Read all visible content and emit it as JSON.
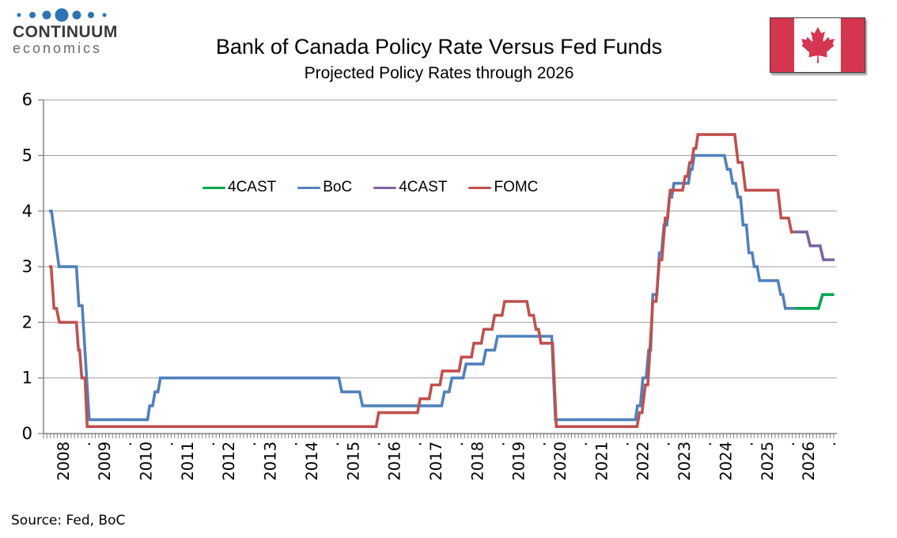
{
  "logo": {
    "brand": "CONTINUUM",
    "sub": "economics",
    "dot_color": "#2d74b4",
    "dot_radii": [
      2.5,
      4,
      5.5,
      8.5,
      5.5,
      4,
      2.5
    ],
    "dot_centers": [
      8,
      25,
      43,
      62,
      81,
      99,
      116
    ]
  },
  "header": {
    "title": "Bank of Canada Policy Rate Versus Fed Funds",
    "subtitle": "Projected Policy Rates through 2026"
  },
  "flag": {
    "name": "canada-flag",
    "red": "#d6354f",
    "white": "#ffffff"
  },
  "source": "Source: Fed, BoC",
  "colors": {
    "grid": "#9e9e9e",
    "axis": "#808080",
    "text": "#000000"
  },
  "chart_data": {
    "type": "line",
    "title": "Bank of Canada Policy Rate Versus Fed Funds",
    "subtitle": "Projected Policy Rates through 2026",
    "xlabel": "",
    "ylabel": "",
    "ylim": [
      0,
      6
    ],
    "yticks": [
      0,
      1,
      2,
      3,
      4,
      5,
      6
    ],
    "xlim": [
      2008,
      2027
    ],
    "xtick_years": [
      2008,
      2009,
      2010,
      2011,
      2012,
      2013,
      2014,
      2015,
      2016,
      2017,
      2018,
      2019,
      2020,
      2021,
      2022,
      2023,
      2024,
      2025,
      2026
    ],
    "xtick_separator": ".",
    "grid": "horizontal",
    "legend_position": "inside-top-left",
    "series": [
      {
        "name": "4CAST",
        "role": "BoC projection",
        "color": "#00a651",
        "points": [
          [
            2026.0,
            2.25
          ],
          [
            2026.58,
            2.25
          ],
          [
            2026.68,
            2.5
          ],
          [
            2026.96,
            2.5
          ]
        ]
      },
      {
        "name": "BoC",
        "role": "Bank of Canada policy rate",
        "color": "#4f81bd",
        "points": [
          [
            2008.0,
            4.0
          ],
          [
            2008.06,
            4.0
          ],
          [
            2008.24,
            3.0
          ],
          [
            2008.66,
            3.0
          ],
          [
            2008.72,
            2.3
          ],
          [
            2008.8,
            2.3
          ],
          [
            2008.97,
            0.25
          ],
          [
            2010.38,
            0.25
          ],
          [
            2010.43,
            0.5
          ],
          [
            2010.5,
            0.5
          ],
          [
            2010.56,
            0.75
          ],
          [
            2010.63,
            0.75
          ],
          [
            2010.69,
            1.0
          ],
          [
            2015.0,
            1.0
          ],
          [
            2015.07,
            0.75
          ],
          [
            2015.5,
            0.75
          ],
          [
            2015.57,
            0.5
          ],
          [
            2017.48,
            0.5
          ],
          [
            2017.55,
            0.75
          ],
          [
            2017.66,
            0.75
          ],
          [
            2017.73,
            1.0
          ],
          [
            2018.0,
            1.0
          ],
          [
            2018.07,
            1.25
          ],
          [
            2018.48,
            1.25
          ],
          [
            2018.55,
            1.5
          ],
          [
            2018.76,
            1.5
          ],
          [
            2018.83,
            1.75
          ],
          [
            2020.14,
            1.75
          ],
          [
            2020.23,
            0.25
          ],
          [
            2022.16,
            0.25
          ],
          [
            2022.21,
            0.5
          ],
          [
            2022.28,
            0.5
          ],
          [
            2022.34,
            1.0
          ],
          [
            2022.42,
            1.0
          ],
          [
            2022.48,
            1.5
          ],
          [
            2022.53,
            1.5
          ],
          [
            2022.58,
            2.5
          ],
          [
            2022.68,
            2.5
          ],
          [
            2022.74,
            3.25
          ],
          [
            2022.79,
            3.25
          ],
          [
            2022.85,
            3.75
          ],
          [
            2022.92,
            3.75
          ],
          [
            2022.98,
            4.25
          ],
          [
            2023.04,
            4.25
          ],
          [
            2023.09,
            4.5
          ],
          [
            2023.44,
            4.5
          ],
          [
            2023.49,
            4.75
          ],
          [
            2023.53,
            4.75
          ],
          [
            2023.58,
            5.0
          ],
          [
            2024.31,
            5.0
          ],
          [
            2024.38,
            4.75
          ],
          [
            2024.45,
            4.75
          ],
          [
            2024.51,
            4.5
          ],
          [
            2024.58,
            4.5
          ],
          [
            2024.64,
            4.25
          ],
          [
            2024.7,
            4.25
          ],
          [
            2024.76,
            3.75
          ],
          [
            2024.84,
            3.75
          ],
          [
            2024.9,
            3.25
          ],
          [
            2024.98,
            3.25
          ],
          [
            2025.03,
            3.0
          ],
          [
            2025.1,
            3.0
          ],
          [
            2025.16,
            2.75
          ],
          [
            2025.6,
            2.75
          ],
          [
            2025.67,
            2.5
          ],
          [
            2025.72,
            2.5
          ],
          [
            2025.78,
            2.25
          ],
          [
            2026.0,
            2.25
          ]
        ]
      },
      {
        "name": "4CAST",
        "role": "Fed projection",
        "color": "#8064a2",
        "points": [
          [
            2026.0,
            3.625
          ],
          [
            2026.3,
            3.625
          ],
          [
            2026.38,
            3.375
          ],
          [
            2026.62,
            3.375
          ],
          [
            2026.7,
            3.125
          ],
          [
            2026.97,
            3.125
          ]
        ]
      },
      {
        "name": "FOMC",
        "role": "Fed funds rate",
        "color": "#c0504d",
        "points": [
          [
            2008.0,
            3.0
          ],
          [
            2008.05,
            3.0
          ],
          [
            2008.12,
            2.25
          ],
          [
            2008.18,
            2.25
          ],
          [
            2008.25,
            2.0
          ],
          [
            2008.66,
            2.0
          ],
          [
            2008.71,
            1.5
          ],
          [
            2008.74,
            1.5
          ],
          [
            2008.79,
            1.0
          ],
          [
            2008.87,
            1.0
          ],
          [
            2008.92,
            0.125
          ],
          [
            2015.9,
            0.125
          ],
          [
            2015.96,
            0.375
          ],
          [
            2016.9,
            0.375
          ],
          [
            2016.96,
            0.625
          ],
          [
            2017.18,
            0.625
          ],
          [
            2017.24,
            0.875
          ],
          [
            2017.44,
            0.875
          ],
          [
            2017.5,
            1.125
          ],
          [
            2017.9,
            1.125
          ],
          [
            2017.96,
            1.375
          ],
          [
            2018.2,
            1.375
          ],
          [
            2018.26,
            1.625
          ],
          [
            2018.44,
            1.625
          ],
          [
            2018.5,
            1.875
          ],
          [
            2018.7,
            1.875
          ],
          [
            2018.76,
            2.125
          ],
          [
            2018.94,
            2.125
          ],
          [
            2019.0,
            2.375
          ],
          [
            2019.54,
            2.375
          ],
          [
            2019.6,
            2.125
          ],
          [
            2019.7,
            2.125
          ],
          [
            2019.76,
            1.875
          ],
          [
            2019.82,
            1.875
          ],
          [
            2019.88,
            1.625
          ],
          [
            2020.16,
            1.625
          ],
          [
            2020.25,
            0.125
          ],
          [
            2022.2,
            0.125
          ],
          [
            2022.26,
            0.375
          ],
          [
            2022.32,
            0.375
          ],
          [
            2022.4,
            0.875
          ],
          [
            2022.46,
            0.875
          ],
          [
            2022.52,
            1.625
          ],
          [
            2022.58,
            2.375
          ],
          [
            2022.66,
            2.375
          ],
          [
            2022.74,
            3.125
          ],
          [
            2022.8,
            3.125
          ],
          [
            2022.88,
            3.875
          ],
          [
            2022.94,
            3.875
          ],
          [
            2023.0,
            4.375
          ],
          [
            2023.3,
            4.375
          ],
          [
            2023.36,
            4.625
          ],
          [
            2023.42,
            4.625
          ],
          [
            2023.47,
            4.875
          ],
          [
            2023.52,
            4.875
          ],
          [
            2023.57,
            5.125
          ],
          [
            2023.62,
            5.125
          ],
          [
            2023.67,
            5.375
          ],
          [
            2024.56,
            5.375
          ],
          [
            2024.64,
            4.875
          ],
          [
            2024.74,
            4.875
          ],
          [
            2024.82,
            4.375
          ],
          [
            2025.6,
            4.375
          ],
          [
            2025.68,
            3.875
          ],
          [
            2025.86,
            3.875
          ],
          [
            2025.93,
            3.625
          ],
          [
            2026.0,
            3.625
          ]
        ]
      }
    ],
    "draw_order": [
      1,
      0,
      3,
      2
    ],
    "line_width": 3.6
  }
}
